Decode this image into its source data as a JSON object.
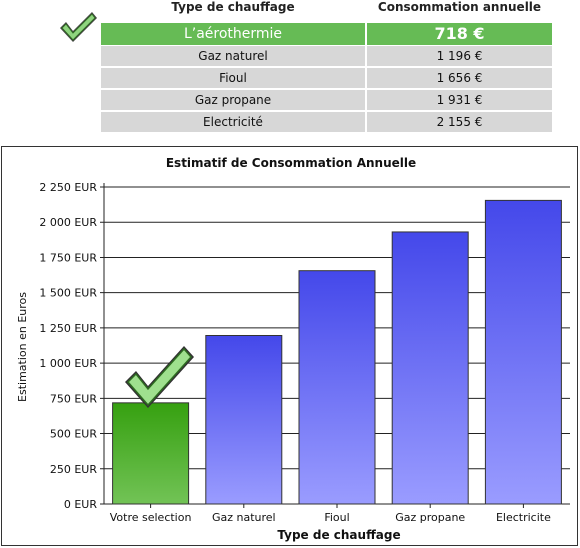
{
  "table": {
    "header_type": "Type de chauffage",
    "header_consumption": "Consommation annuelle",
    "rows": [
      {
        "type": "L’aérothermie",
        "value": "718 €",
        "highlight": true
      },
      {
        "type": "Gaz naturel",
        "value": "1 196 €",
        "highlight": false
      },
      {
        "type": "Fioul",
        "value": "1 656 €",
        "highlight": false
      },
      {
        "type": "Gaz propane",
        "value": "1 931 €",
        "highlight": false
      },
      {
        "type": "Electricité",
        "value": "2 155 €",
        "highlight": false
      }
    ]
  },
  "icons": {
    "top_check": "checkmark-icon",
    "bar_check": "checkmark-icon"
  },
  "colors": {
    "highlight": "#66bb55",
    "selection_bar": "#3c9f1e",
    "bars": "#4b4fee",
    "row_bg": "#d7d7d7"
  },
  "chart_data": {
    "type": "bar",
    "title": "Estimatif de Consommation Annuelle",
    "xlabel": "Type de chauffage",
    "ylabel": "Estimation en Euros",
    "categories": [
      "Votre selection",
      "Gaz naturel",
      "Fioul",
      "Gaz propane",
      "Electricite"
    ],
    "values": [
      718,
      1196,
      1656,
      1931,
      2155
    ],
    "ylim": [
      0,
      2250
    ],
    "yticks": [
      0,
      250,
      500,
      750,
      1000,
      1250,
      1500,
      1750,
      2000,
      2250
    ],
    "ytick_labels": [
      "0 EUR",
      "250 EUR",
      "500 EUR",
      "750 EUR",
      "1 000 EUR",
      "1 250 EUR",
      "1 500 EUR",
      "1 750 EUR",
      "2 000 EUR",
      "2 250 EUR"
    ],
    "grid": true,
    "legend": "none"
  }
}
